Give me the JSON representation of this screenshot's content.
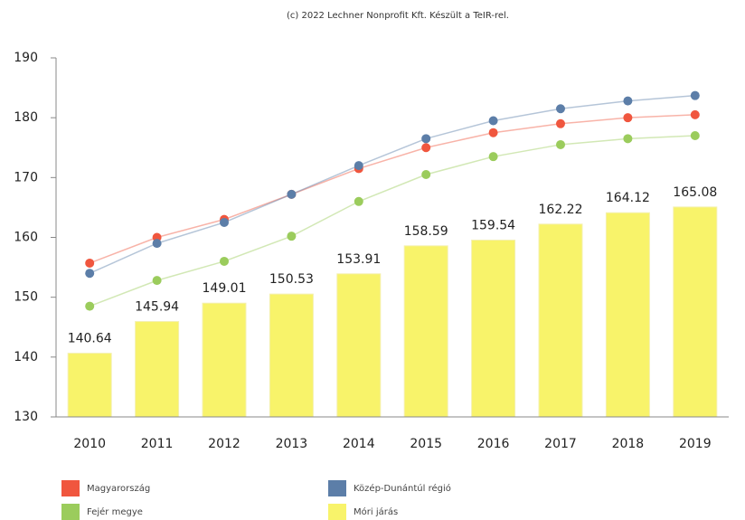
{
  "chart_data": {
    "type": "combo",
    "title": "(c) 2022 Lechner Nonprofit Kft. Készült a TeIR-rel.",
    "categories": [
      "2010",
      "2011",
      "2012",
      "2013",
      "2014",
      "2015",
      "2016",
      "2017",
      "2018",
      "2019"
    ],
    "series": [
      {
        "name": "Magyarország",
        "type": "line",
        "color": "#f0563e",
        "values": [
          155.7,
          160,
          163,
          167.2,
          171.5,
          175,
          177.5,
          179,
          180,
          180.5
        ]
      },
      {
        "name": "Közép-Dunántúl régió",
        "type": "line",
        "color": "#5c7ea8",
        "values": [
          154,
          159,
          162.5,
          167.2,
          172,
          176.5,
          179.5,
          181.5,
          182.8,
          183.7
        ]
      },
      {
        "name": "Fejér megye",
        "type": "line",
        "color": "#9bcc5c",
        "values": [
          148.5,
          152.8,
          156,
          160.2,
          166,
          170.5,
          173.5,
          175.5,
          176.5,
          177
        ]
      },
      {
        "name": "Móri járás",
        "type": "bar",
        "color": "#f8f36a",
        "values": [
          140.64,
          145.94,
          149.01,
          150.53,
          153.91,
          158.59,
          159.54,
          162.22,
          164.12,
          165.08
        ]
      }
    ],
    "ylim": [
      130,
      190
    ],
    "yticks": [
      130,
      140,
      150,
      160,
      170,
      180,
      190
    ],
    "grid": false
  }
}
